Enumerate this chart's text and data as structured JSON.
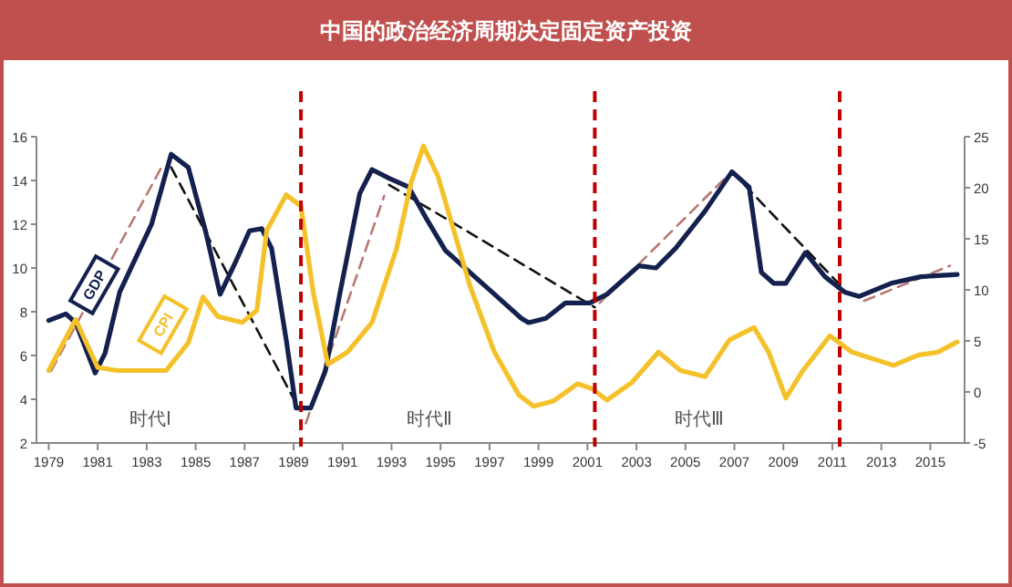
{
  "chart_data": {
    "type": "line",
    "title": "中国的政治经济周期决定固定资产投资",
    "series": [
      {
        "name": "GDP",
        "color": "#14214f",
        "axis": "y",
        "line_style": "solid",
        "x": [
          1979,
          1979.7,
          1980.1,
          1980.9,
          1981.3,
          1981.9,
          1983.2,
          1984.0,
          1984.7,
          1985.4,
          1986.0,
          1986.6,
          1987.2,
          1987.7,
          1988.1,
          1988.7,
          1989.1,
          1989.7,
          1990.3,
          1990.9,
          1991.7,
          1992.2,
          1992.9,
          1993.7,
          1994.4,
          1995.2,
          1995.9,
          1997.1,
          1998.3,
          1998.6,
          1999.3,
          2000.1,
          2001.1,
          2001.8,
          2003.1,
          2003.8,
          2004.6,
          2005.8,
          2006.9,
          2007.6,
          2008.1,
          2008.6,
          2009.1,
          2009.9,
          2010.7,
          2011.5,
          2012.1,
          2013.4,
          2014.6,
          2016.1
        ],
        "values": [
          7.6,
          7.9,
          7.5,
          5.2,
          6.1,
          8.9,
          12.0,
          15.2,
          14.6,
          11.7,
          8.8,
          10.2,
          11.7,
          11.8,
          10.9,
          6.7,
          3.6,
          3.6,
          5.3,
          8.9,
          13.4,
          14.5,
          14.1,
          13.7,
          12.3,
          10.8,
          10.1,
          8.9,
          7.7,
          7.5,
          7.7,
          8.4,
          8.4,
          8.8,
          10.1,
          10.0,
          10.9,
          12.6,
          14.4,
          13.7,
          9.8,
          9.3,
          9.3,
          10.7,
          9.6,
          8.9,
          8.7,
          9.3,
          9.6,
          9.7
        ]
      },
      {
        "name": "CPI",
        "color": "#f5c12a",
        "axis": "y2",
        "line_style": "solid",
        "x": [
          1979.0,
          1980.1,
          1981.0,
          1981.8,
          1983.8,
          1984.7,
          1985.3,
          1985.9,
          1986.9,
          1987.5,
          1987.9,
          1988.7,
          1989.3,
          1989.8,
          1990.4,
          1991.2,
          1992.2,
          1993.2,
          1993.8,
          1994.3,
          1994.9,
          1996.2,
          1997.2,
          1998.2,
          1998.8,
          1999.6,
          2000.6,
          2001.2,
          2001.8,
          2002.8,
          2003.9,
          2004.8,
          2005.8,
          2006.8,
          2007.8,
          2008.4,
          2009.1,
          2009.8,
          2010.9,
          2011.8,
          2013.5,
          2014.5,
          2015.3,
          2016.1
        ],
        "values": [
          2.1,
          7.1,
          2.4,
          2.1,
          2.1,
          4.8,
          9.3,
          7.4,
          6.8,
          8.0,
          15.8,
          19.3,
          18.2,
          9.8,
          2.7,
          3.9,
          6.8,
          14.0,
          20.5,
          24.1,
          21.1,
          10.4,
          3.9,
          -0.3,
          -1.4,
          -0.9,
          0.8,
          0.3,
          -0.8,
          0.9,
          3.9,
          2.1,
          1.5,
          5.1,
          6.3,
          3.9,
          -0.6,
          2.1,
          5.5,
          3.9,
          2.6,
          3.6,
          3.9,
          4.9
        ]
      },
      {
        "color": "#b87872",
        "axis": "y",
        "line_style": "dashed",
        "x": [
          1979.1,
          1983.7
        ],
        "values": [
          5.3,
          14.8
        ]
      },
      {
        "color": "#111111",
        "axis": "y",
        "line_style": "dashed",
        "x": [
          1984.0,
          1989.2
        ],
        "values": [
          14.6,
          3.6
        ]
      },
      {
        "color": "#b87872",
        "axis": "y",
        "line_style": "dashed",
        "x": [
          1989.5,
          1992.7
        ],
        "values": [
          2.9,
          13.3
        ]
      },
      {
        "color": "#111111",
        "axis": "y",
        "line_style": "dashed",
        "x": [
          1992.9,
          2001.3
        ],
        "values": [
          13.8,
          8.2
        ]
      },
      {
        "color": "#b87872",
        "axis": "y",
        "line_style": "dashed",
        "x": [
          2001.5,
          2006.7
        ],
        "values": [
          8.4,
          14.2
        ]
      },
      {
        "color": "#111111",
        "axis": "y",
        "line_style": "dashed",
        "x": [
          2006.9,
          2011.5
        ],
        "values": [
          14.4,
          9.0
        ]
      },
      {
        "color": "#b87872",
        "axis": "y",
        "line_style": "dashed",
        "x": [
          2012.3,
          2015.8
        ],
        "values": [
          8.5,
          10.1
        ]
      }
    ],
    "xlim": [
      1978.5,
      2016.4
    ],
    "xticks": [
      1979,
      1981,
      1983,
      1985,
      1987,
      1989,
      1991,
      1993,
      1995,
      1997,
      1999,
      2001,
      2003,
      2005,
      2007,
      2009,
      2011,
      2013,
      2015
    ],
    "ylim": [
      2,
      16
    ],
    "yticks": [
      2,
      4,
      6,
      8,
      10,
      12,
      14,
      16
    ],
    "y2lim": [
      -5,
      25
    ],
    "y2ticks": [
      -5,
      0,
      5,
      10,
      15,
      20,
      25
    ],
    "ref_lines": [
      {
        "axis": "x",
        "value": 1989.3,
        "color": "#c00000",
        "line_style": "dashed"
      },
      {
        "axis": "x",
        "value": 2001.3,
        "color": "#c00000",
        "line_style": "dashed"
      },
      {
        "axis": "x",
        "value": 2011.3,
        "color": "#c00000",
        "line_style": "dashed"
      }
    ],
    "annotations": [
      "时代Ⅰ",
      "时代Ⅱ",
      "时代Ⅲ"
    ],
    "grid": false,
    "legend": false
  }
}
